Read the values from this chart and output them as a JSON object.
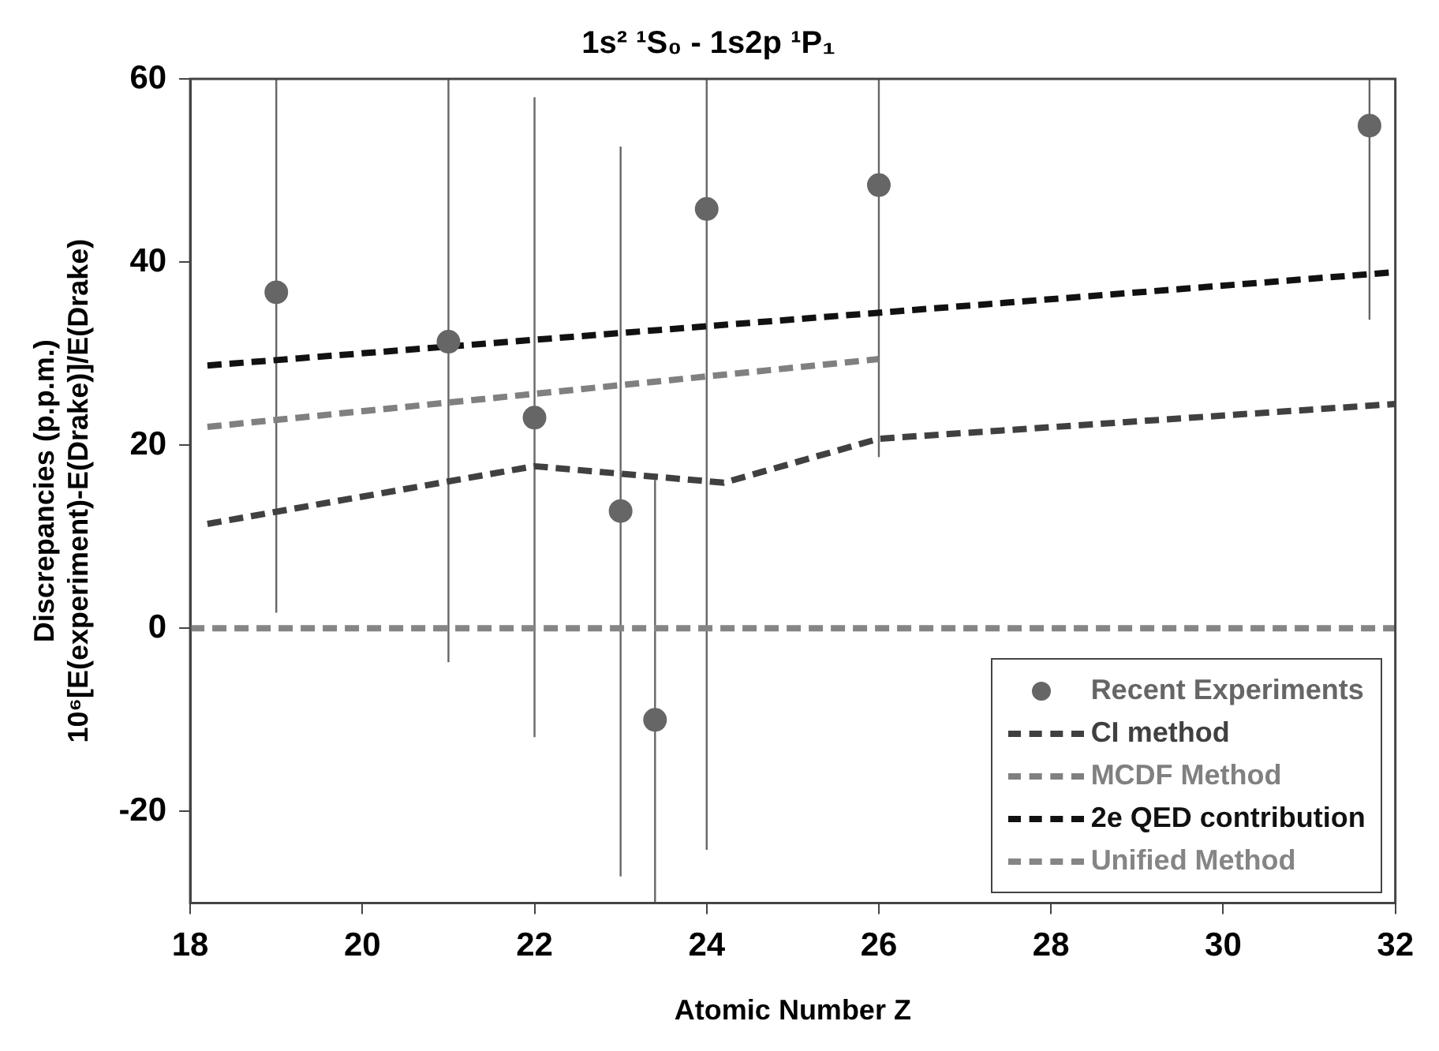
{
  "chart_data": {
    "type": "line",
    "title": "1s² ¹S₀ - 1s2p ¹P₁",
    "xlabel": "Atomic Number Z",
    "ylabel": "Discrepancies (p.p.m.)\n10⁶[E(experiment)-E(Drake)]/E(Drake)",
    "xlim": [
      18,
      32
    ],
    "xticks": [
      18,
      20,
      22,
      24,
      26,
      28,
      30,
      32
    ],
    "ylim": [
      -30,
      60
    ],
    "yticks": [
      -20,
      0,
      20,
      40,
      60
    ],
    "grid": false,
    "legend": "bottom right",
    "series": [
      {
        "name": "Recent Experiments",
        "type": "scatter",
        "marker": "circle",
        "color": "#666666",
        "x": [
          19,
          21,
          22,
          23,
          23.4,
          24,
          26,
          31.7
        ],
        "values": [
          36.7,
          31.3,
          23.0,
          12.8,
          -10.0,
          45.8,
          48.4,
          54.9
        ],
        "errors": [
          [
            1.7,
            60
          ],
          [
            -3.7,
            60
          ],
          [
            -11.9,
            58
          ],
          [
            -27.1,
            52.6
          ],
          [
            -30,
            16.2
          ],
          [
            -24.2,
            60
          ],
          [
            18.7,
            60
          ],
          [
            33.7,
            60
          ]
        ]
      },
      {
        "name": "CI method",
        "marker": "none",
        "line_style": "dashed",
        "color": "#404040",
        "x": [
          18.2,
          22,
          24.2,
          26,
          32
        ],
        "values": [
          11.4,
          17.7,
          15.9,
          20.7,
          24.5
        ]
      },
      {
        "name": "MCDF Method",
        "marker": "none",
        "line_style": "dashed",
        "color": "#808080",
        "x": [
          18.2,
          26
        ],
        "values": [
          22.0,
          29.4
        ]
      },
      {
        "name": "2e QED contribution",
        "marker": "none",
        "line_style": "dashed",
        "color": "#111111",
        "x": [
          18.2,
          32
        ],
        "values": [
          28.7,
          38.9
        ]
      },
      {
        "name": "Unified Method",
        "marker": "none",
        "line_style": "dashed",
        "color": "#858585",
        "x": [
          18,
          32
        ],
        "values": [
          0,
          0
        ]
      }
    ]
  }
}
